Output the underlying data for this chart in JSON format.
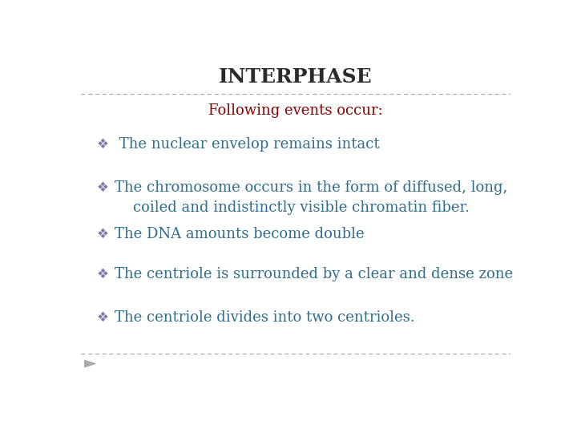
{
  "title": "INTERPHASE",
  "title_color": "#2b2b2b",
  "title_fontsize": 18,
  "subtitle": "Following events occur:",
  "subtitle_color": "#8b0000",
  "subtitle_fontsize": 13,
  "bullet_color": "#2e6d8e",
  "bullet_fontsize": 13,
  "bullet_symbol_color": "#7b7baa",
  "background_color": "#ffffff",
  "divider_color": "#aaaaaa",
  "bullets": [
    " The nuclear envelop remains intact",
    "The chromosome occurs in the form of diffused, long,\n    coiled and indistinctly visible chromatin fiber.",
    "The DNA amounts become double",
    "The centriole is surrounded by a clear and dense zone",
    "The centriole divides into two centrioles."
  ]
}
